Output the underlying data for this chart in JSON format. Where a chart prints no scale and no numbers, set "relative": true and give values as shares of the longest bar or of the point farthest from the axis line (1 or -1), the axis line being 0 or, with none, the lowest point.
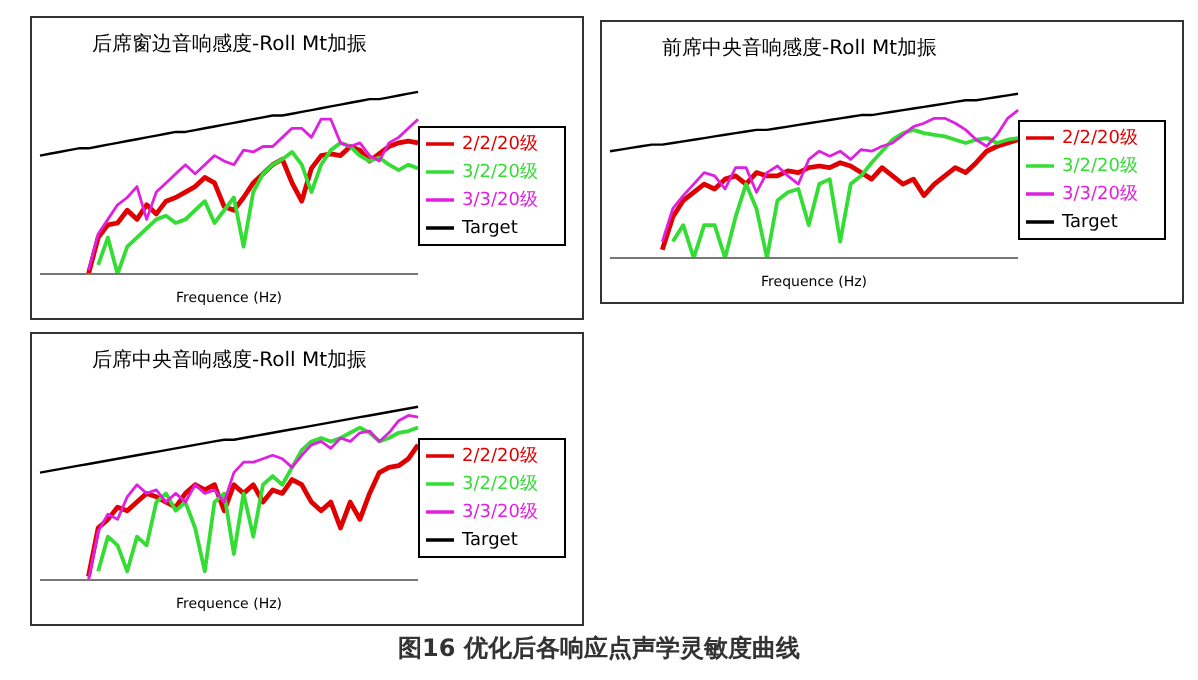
{
  "chart_data": [
    {
      "type": "line",
      "title": "后席窗边音响感度-Roll Mt加振",
      "xlabel": "Frequence (Hz)",
      "relative": true,
      "legend": "right",
      "marker": "none",
      "line_style": "solid",
      "categories": [
        null,
        null,
        null,
        null,
        null,
        null,
        null,
        null,
        null,
        null,
        null,
        null,
        null,
        null,
        null,
        null,
        null,
        null,
        null,
        null,
        null,
        null,
        null,
        null,
        null,
        null,
        null,
        null,
        null,
        null,
        null,
        null,
        null,
        null,
        null,
        null,
        null,
        null,
        null,
        null
      ],
      "series": [
        {
          "name": "2/2/20级",
          "color": "#e00000",
          "values": [
            null,
            null,
            null,
            null,
            null,
            0.0,
            0.2,
            0.27,
            0.28,
            0.35,
            0.3,
            0.38,
            0.33,
            0.4,
            0.42,
            0.45,
            0.48,
            0.53,
            0.5,
            0.37,
            0.35,
            0.42,
            0.5,
            0.55,
            0.6,
            0.63,
            0.5,
            0.4,
            0.58,
            0.65,
            0.66,
            0.65,
            0.7,
            0.68,
            0.62,
            0.66,
            0.7,
            0.72,
            0.73,
            0.72
          ]
        },
        {
          "name": "3/2/20级",
          "color": "#33dd33",
          "values": [
            null,
            null,
            null,
            null,
            null,
            null,
            0.05,
            0.2,
            0.0,
            0.15,
            0.2,
            0.25,
            0.3,
            0.32,
            0.28,
            0.3,
            0.35,
            0.4,
            0.28,
            0.35,
            0.42,
            0.15,
            0.45,
            0.55,
            0.6,
            0.63,
            0.67,
            0.6,
            0.45,
            0.6,
            0.68,
            0.72,
            0.7,
            0.65,
            0.62,
            0.64,
            0.6,
            0.57,
            0.6,
            0.58
          ]
        },
        {
          "name": "3/3/20级",
          "color": "#e020e0",
          "values": [
            null,
            null,
            null,
            null,
            null,
            0.02,
            0.22,
            0.3,
            0.38,
            0.42,
            0.48,
            0.3,
            0.45,
            0.5,
            0.55,
            0.6,
            0.55,
            0.6,
            0.65,
            0.62,
            0.6,
            0.68,
            0.67,
            0.7,
            0.7,
            0.75,
            0.8,
            0.8,
            0.75,
            0.85,
            0.85,
            0.72,
            0.7,
            0.72,
            0.65,
            0.62,
            0.72,
            0.75,
            0.8,
            0.85
          ]
        },
        {
          "name": "Target",
          "color": "#000000",
          "values": [
            0.65,
            0.66,
            0.67,
            0.68,
            0.69,
            0.69,
            0.7,
            0.71,
            0.72,
            0.73,
            0.74,
            0.75,
            0.76,
            0.77,
            0.78,
            0.78,
            0.79,
            0.8,
            0.81,
            0.82,
            0.83,
            0.84,
            0.85,
            0.86,
            0.87,
            0.87,
            0.88,
            0.89,
            0.9,
            0.91,
            0.92,
            0.93,
            0.94,
            0.95,
            0.96,
            0.96,
            0.97,
            0.98,
            0.99,
            1.0
          ]
        }
      ]
    },
    {
      "type": "line",
      "title": "前席中央音响感度-Roll Mt加振",
      "xlabel": "Frequence (Hz)",
      "relative": true,
      "legend": "right",
      "marker": "none",
      "line_style": "solid",
      "categories": [
        null,
        null,
        null,
        null,
        null,
        null,
        null,
        null,
        null,
        null,
        null,
        null,
        null,
        null,
        null,
        null,
        null,
        null,
        null,
        null,
        null,
        null,
        null,
        null,
        null,
        null,
        null,
        null,
        null,
        null,
        null,
        null,
        null,
        null,
        null,
        null,
        null,
        null,
        null,
        null
      ],
      "series": [
        {
          "name": "2/2/20级",
          "color": "#e00000",
          "values": [
            null,
            null,
            null,
            null,
            null,
            0.05,
            0.25,
            0.35,
            0.4,
            0.45,
            0.42,
            0.48,
            0.5,
            0.45,
            0.52,
            0.5,
            0.5,
            0.53,
            0.52,
            0.55,
            0.56,
            0.55,
            0.58,
            0.56,
            0.52,
            0.48,
            0.55,
            0.5,
            0.45,
            0.48,
            0.38,
            0.45,
            0.5,
            0.55,
            0.52,
            0.58,
            0.65,
            0.68,
            0.7,
            0.72
          ]
        },
        {
          "name": "3/2/20级",
          "color": "#33dd33",
          "values": [
            null,
            null,
            null,
            null,
            null,
            null,
            0.1,
            0.2,
            0.0,
            0.2,
            0.2,
            0.0,
            0.25,
            0.45,
            0.3,
            0.0,
            0.35,
            0.4,
            0.42,
            0.2,
            0.45,
            0.48,
            0.1,
            0.45,
            0.5,
            0.58,
            0.65,
            0.72,
            0.76,
            0.78,
            0.76,
            0.75,
            0.74,
            0.72,
            0.7,
            0.72,
            0.73,
            0.7,
            0.72,
            0.73
          ]
        },
        {
          "name": "3/3/20级",
          "color": "#e020e0",
          "values": [
            null,
            null,
            null,
            null,
            null,
            0.1,
            0.3,
            0.38,
            0.45,
            0.52,
            0.5,
            0.42,
            0.55,
            0.55,
            0.4,
            0.52,
            0.56,
            0.5,
            0.45,
            0.6,
            0.65,
            0.62,
            0.65,
            0.6,
            0.66,
            0.65,
            0.68,
            0.7,
            0.75,
            0.8,
            0.82,
            0.85,
            0.85,
            0.82,
            0.78,
            0.72,
            0.68,
            0.75,
            0.85,
            0.9
          ]
        },
        {
          "name": "Target",
          "color": "#000000",
          "values": [
            0.65,
            0.66,
            0.67,
            0.68,
            0.69,
            0.69,
            0.7,
            0.71,
            0.72,
            0.73,
            0.74,
            0.75,
            0.76,
            0.77,
            0.78,
            0.78,
            0.79,
            0.8,
            0.81,
            0.82,
            0.83,
            0.84,
            0.85,
            0.86,
            0.87,
            0.87,
            0.88,
            0.89,
            0.9,
            0.91,
            0.92,
            0.93,
            0.94,
            0.95,
            0.96,
            0.96,
            0.97,
            0.98,
            0.99,
            1.0
          ]
        }
      ]
    },
    {
      "type": "line",
      "title": "后席中央音响感度-Roll Mt加振",
      "xlabel": "Frequence (Hz)",
      "relative": true,
      "legend": "right",
      "marker": "none",
      "line_style": "solid",
      "annotations": [
        "图16  优化后各响应点声学灵敏度曲线"
      ],
      "categories": [
        null,
        null,
        null,
        null,
        null,
        null,
        null,
        null,
        null,
        null,
        null,
        null,
        null,
        null,
        null,
        null,
        null,
        null,
        null,
        null,
        null,
        null,
        null,
        null,
        null,
        null,
        null,
        null,
        null,
        null,
        null,
        null,
        null,
        null,
        null,
        null,
        null,
        null,
        null,
        null
      ],
      "series": [
        {
          "name": "2/2/20级",
          "color": "#e00000",
          "values": [
            null,
            null,
            null,
            null,
            null,
            0.02,
            0.3,
            0.35,
            0.42,
            0.4,
            0.45,
            0.5,
            0.48,
            0.45,
            0.42,
            0.5,
            0.55,
            0.52,
            0.55,
            0.4,
            0.55,
            0.5,
            0.55,
            0.45,
            0.52,
            0.5,
            0.58,
            0.55,
            0.45,
            0.4,
            0.45,
            0.3,
            0.45,
            0.35,
            0.5,
            0.62,
            0.65,
            0.66,
            0.7,
            0.78
          ]
        },
        {
          "name": "3/2/20级",
          "color": "#33dd33",
          "values": [
            null,
            null,
            null,
            null,
            null,
            null,
            0.05,
            0.25,
            0.2,
            0.05,
            0.25,
            0.2,
            0.45,
            0.5,
            0.4,
            0.45,
            0.3,
            0.05,
            0.45,
            0.5,
            0.15,
            0.5,
            0.25,
            0.55,
            0.6,
            0.55,
            0.65,
            0.75,
            0.8,
            0.82,
            0.8,
            0.82,
            0.85,
            0.88,
            0.85,
            0.8,
            0.82,
            0.85,
            0.86,
            0.88
          ]
        },
        {
          "name": "3/3/20级",
          "color": "#e020e0",
          "values": [
            null,
            null,
            null,
            null,
            null,
            0.0,
            0.28,
            0.38,
            0.35,
            0.48,
            0.55,
            0.5,
            0.52,
            0.45,
            0.5,
            0.45,
            0.55,
            0.5,
            0.52,
            0.45,
            0.62,
            0.68,
            0.68,
            0.7,
            0.72,
            0.7,
            0.65,
            0.72,
            0.78,
            0.8,
            0.76,
            0.82,
            0.8,
            0.85,
            0.86,
            0.8,
            0.85,
            0.92,
            0.95,
            0.94
          ]
        },
        {
          "name": "Target",
          "color": "#000000",
          "values": [
            0.62,
            0.63,
            0.64,
            0.65,
            0.66,
            0.67,
            0.68,
            0.69,
            0.7,
            0.71,
            0.72,
            0.73,
            0.74,
            0.75,
            0.76,
            0.77,
            0.78,
            0.79,
            0.8,
            0.81,
            0.81,
            0.82,
            0.83,
            0.84,
            0.85,
            0.86,
            0.87,
            0.88,
            0.89,
            0.9,
            0.91,
            0.92,
            0.93,
            0.94,
            0.95,
            0.96,
            0.97,
            0.98,
            0.99,
            1.0
          ]
        }
      ]
    }
  ]
}
